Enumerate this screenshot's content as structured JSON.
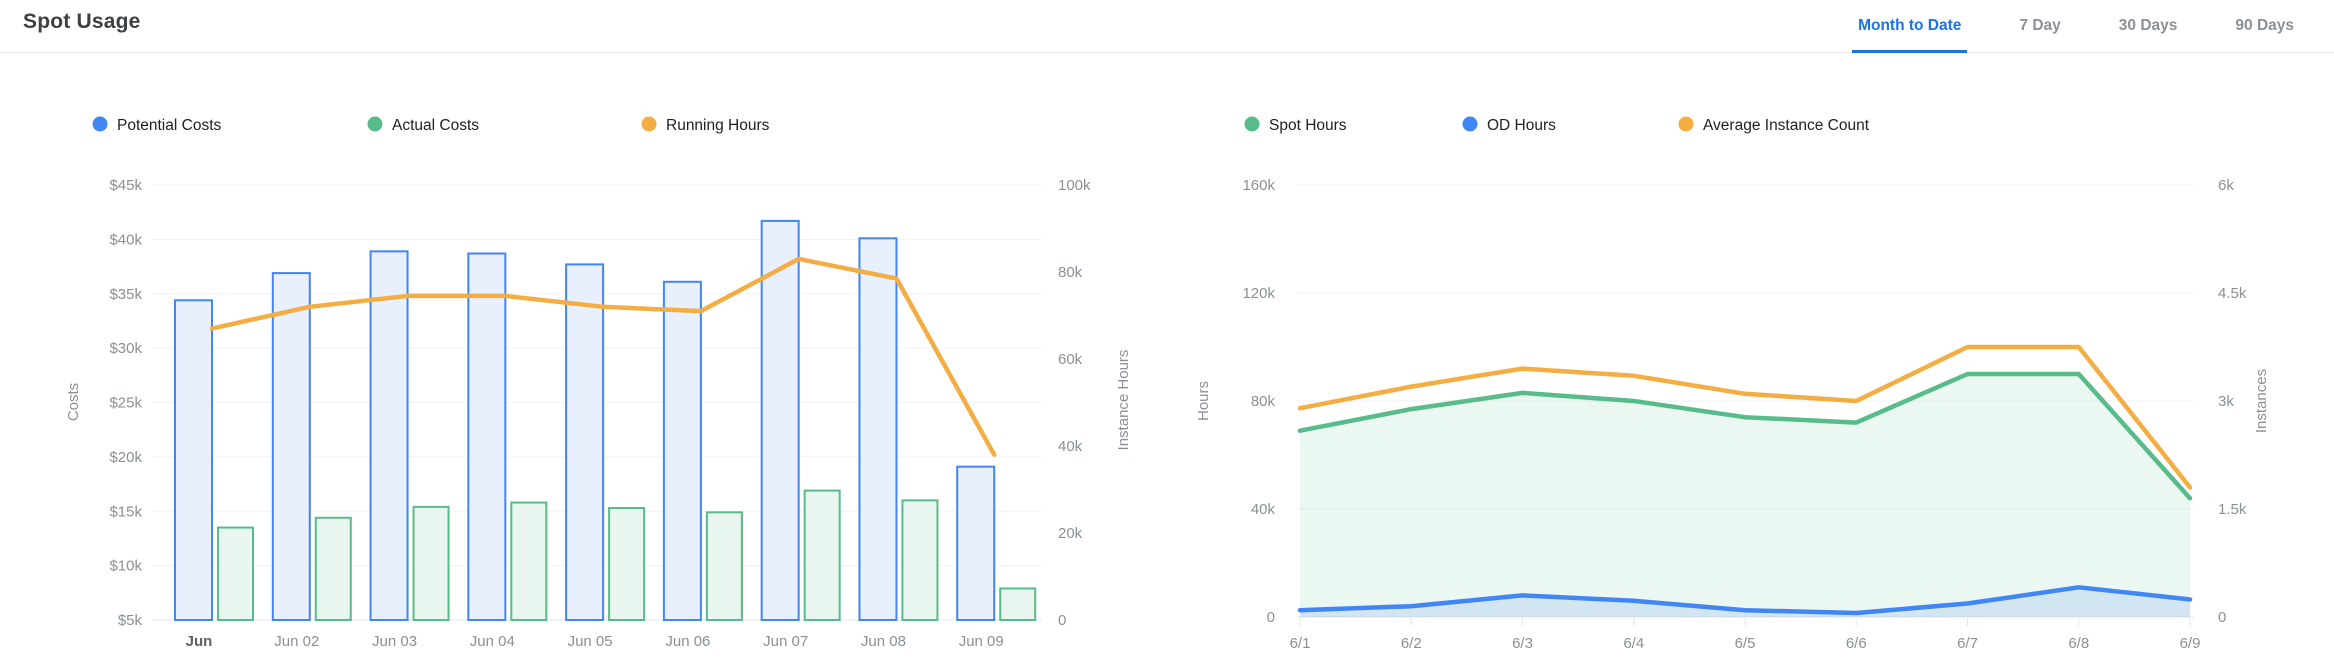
{
  "header": {
    "title": "Spot Usage",
    "tabs": [
      {
        "label": "Month to Date",
        "active": true
      },
      {
        "label": "7 Day",
        "active": false
      },
      {
        "label": "30 Days",
        "active": false
      },
      {
        "label": "90 Days",
        "active": false
      }
    ]
  },
  "colors": {
    "accent_blue": "#4285f4",
    "accent_green": "#57bb8a",
    "accent_orange": "#f3ad42",
    "active_tab": "#1a73e8",
    "inactive_tab": "#8b9096",
    "axis_text": "#8a9095",
    "x_label_first": "#5b6065",
    "legend_text": "#202124",
    "grid_line": "#f1f2f3",
    "axis_line": "#e4e7ea"
  },
  "chart_data": [
    {
      "type": "bar",
      "name": "Costs and Running Hours by day",
      "categories": [
        "Jun",
        "Jun 02",
        "Jun 03",
        "Jun 04",
        "Jun 05",
        "Jun 06",
        "Jun 07",
        "Jun 08",
        "Jun 09"
      ],
      "series": [
        {
          "name": "Potential Costs",
          "kind": "bar",
          "axis": "left",
          "color": "#4285f4",
          "fill": "#e8effd",
          "values": [
            34400,
            36900,
            38900,
            38700,
            37700,
            36100,
            41700,
            40100,
            19100
          ]
        },
        {
          "name": "Actual Costs",
          "kind": "bar",
          "axis": "left",
          "color": "#57bb8a",
          "fill": "#e9f6ef",
          "values": [
            13500,
            14400,
            15400,
            15800,
            15300,
            14900,
            16900,
            16000,
            7900
          ]
        },
        {
          "name": "Running Hours",
          "kind": "line",
          "axis": "right",
          "color": "#f3ad42",
          "values": [
            67000,
            72000,
            74500,
            74500,
            72000,
            71000,
            83000,
            78500,
            38000
          ]
        }
      ],
      "left_axis": {
        "title": "Costs",
        "min": 5000,
        "max": 45000,
        "tick_labels": [
          "$5k",
          "$10k",
          "$15k",
          "$20k",
          "$25k",
          "$30k",
          "$35k",
          "$40k",
          "$45k"
        ]
      },
      "right_axis": {
        "title": "Instance Hours",
        "min": 0,
        "max": 100000,
        "tick_labels": [
          "0",
          "20k",
          "40k",
          "60k",
          "80k",
          "100k"
        ]
      },
      "legend_position": "top"
    },
    {
      "type": "area",
      "name": "Spot and On-Demand hours by day",
      "categories": [
        "6/1",
        "6/2",
        "6/3",
        "6/4",
        "6/5",
        "6/6",
        "6/7",
        "6/8",
        "6/9"
      ],
      "series": [
        {
          "name": "Spot Hours",
          "kind": "area",
          "axis": "left",
          "color": "#57bb8a",
          "fill_opacity": 0.12,
          "values": [
            69000,
            77000,
            83000,
            80000,
            74000,
            72000,
            90000,
            90000,
            44000
          ]
        },
        {
          "name": "OD Hours",
          "kind": "area",
          "axis": "left",
          "color": "#4285f4",
          "fill_opacity": 0.15,
          "values": [
            2500,
            4000,
            8000,
            6000,
            2500,
            1500,
            5000,
            11000,
            6500
          ]
        },
        {
          "name": "Average Instance Count",
          "kind": "line",
          "axis": "right",
          "color": "#f3ad42",
          "values": [
            2900,
            3200,
            3450,
            3350,
            3100,
            3000,
            3750,
            3750,
            1800
          ]
        }
      ],
      "left_axis": {
        "title": "Hours",
        "min": 0,
        "max": 160000,
        "tick_labels": [
          "0",
          "40k",
          "80k",
          "120k",
          "160k"
        ]
      },
      "right_axis": {
        "title": "Instances",
        "min": 0,
        "max": 6000,
        "tick_labels": [
          "0",
          "1.5k",
          "3k",
          "4.5k",
          "6k"
        ]
      },
      "legend_position": "top"
    }
  ]
}
